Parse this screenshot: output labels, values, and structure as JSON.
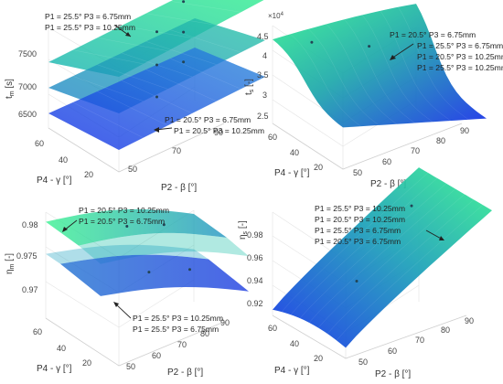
{
  "chart_data": [
    {
      "type": "surface3d",
      "panel": "top-left",
      "xlabel": "P2 - β [°]",
      "ylabel": "P4 - γ [°]",
      "zlabel": "t_m [s]",
      "x_ticks": [
        "50",
        "70",
        "90"
      ],
      "y_ticks": [
        "20",
        "40",
        "60"
      ],
      "z_ticks": [
        "6500",
        "7000",
        "7500"
      ],
      "xlim": [
        50,
        90
      ],
      "ylim": [
        10,
        70
      ],
      "zlim": [
        6150,
        7900
      ],
      "surfaces": [
        {
          "corners": {
            "x50_y10": 7450,
            "x90_y10": 7760,
            "x50_y70": 7050,
            "x90_y70": 7300
          },
          "color": "green"
        },
        {
          "corners": {
            "x50_y10": 6950,
            "x90_y10": 7200,
            "x50_y70": 6700,
            "x90_y70": 6900
          },
          "color": "teal"
        },
        {
          "corners": {
            "x50_y10": 6450,
            "x90_y10": 6700,
            "x50_y70": 6350,
            "x90_y70": 6500
          },
          "color": "blue"
        }
      ],
      "annotations": [
        {
          "lines": [
            "P1 = 25.5°  P3 = 6.75mm",
            "P1 = 25.5°  P3 = 10.25mm"
          ]
        },
        {
          "lines": [
            "P1 = 20.5°  P3 = 6.75mm",
            "P1 = 20.5°  P3 = 10.25mm"
          ]
        }
      ]
    },
    {
      "type": "surface3d",
      "panel": "top-right",
      "xlabel": "P2 - β [°]",
      "ylabel": "P4 - γ [°]",
      "zlabel": "t_s [-]",
      "z_multiplier": "×10",
      "z_multiplier_exp": "4",
      "x_ticks": [
        "50",
        "60",
        "70",
        "80",
        "90"
      ],
      "y_ticks": [
        "20",
        "40",
        "60"
      ],
      "z_ticks": [
        "2.5",
        "3",
        "3.5",
        "4",
        "4.5"
      ],
      "xlim": [
        50,
        90
      ],
      "ylim": [
        10,
        70
      ],
      "zlim": [
        2.3,
        4.75
      ],
      "annotations": [
        {
          "lines": [
            "P1 = 20.5°  P3 = 6.75mm",
            "P1 = 25.5°  P3 = 6.75mm",
            "P1 = 20.5°  P3 = 10.25mm",
            "P1 = 25.5°  P3 = 10.25mm"
          ]
        }
      ]
    },
    {
      "type": "surface3d",
      "panel": "bottom-left",
      "xlabel": "P2 - β [°]",
      "ylabel": "P4 - γ [°]",
      "zlabel": "η_m [-]",
      "x_ticks": [
        "50",
        "60",
        "70",
        "80",
        "90"
      ],
      "y_ticks": [
        "20",
        "40",
        "60"
      ],
      "z_ticks": [
        "0.97",
        "0.975",
        "0.98"
      ],
      "xlim": [
        50,
        90
      ],
      "ylim": [
        10,
        70
      ],
      "zlim": [
        0.964,
        0.982
      ],
      "annotations": [
        {
          "lines": [
            "P1 = 20.5°  P3 = 10.25mm",
            "P1 = 20.5°  P3 = 6.75mm"
          ]
        },
        {
          "lines": [
            "P1 = 25.5°  P3 = 10.25mm",
            "P1 = 25.5°  P3 = 6.75mm"
          ]
        }
      ]
    },
    {
      "type": "surface3d",
      "panel": "bottom-right",
      "xlabel": "P2 - β [°]",
      "ylabel": "P4 - γ [°]",
      "zlabel": "η_s [-]",
      "x_ticks": [
        "50",
        "60",
        "70",
        "80",
        "90"
      ],
      "y_ticks": [
        "20",
        "40",
        "60"
      ],
      "z_ticks": [
        "0.92",
        "0.94",
        "0.96",
        "0.98"
      ],
      "xlim": [
        50,
        90
      ],
      "ylim": [
        10,
        70
      ],
      "zlim": [
        0.905,
        0.99
      ],
      "annotations": [
        {
          "lines": [
            "P1 = 25.5°  P3 = 10.25mm",
            "P1 = 20.5°  P3 = 10.25mm",
            "P1 = 25.5°  P3 = 6.75mm",
            "P1 = 20.5°  P3 = 6.75mm"
          ]
        }
      ]
    }
  ],
  "colors": {
    "surface_top": "#2fe892",
    "surface_mid": "#1aa6b8",
    "surface_low": "#1236e0"
  }
}
